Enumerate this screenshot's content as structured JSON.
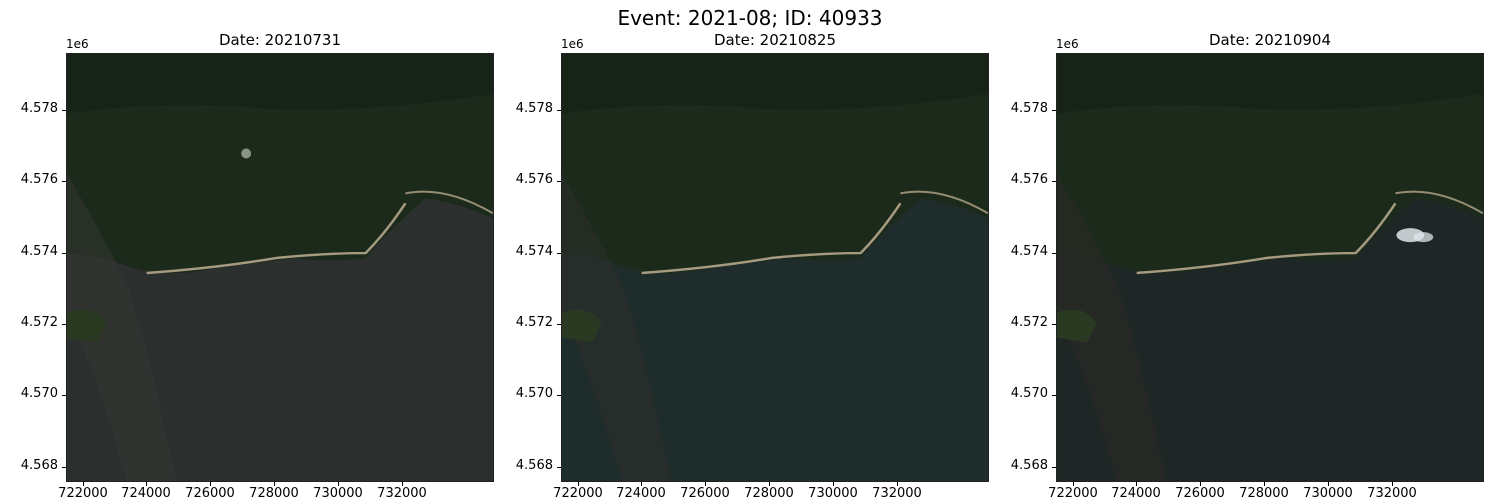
{
  "figure": {
    "suptitle": "Event: 2021-08; ID: 40933"
  },
  "axes_common": {
    "y_offset_label": "1e6",
    "y_ticks": [
      "4.578",
      "4.576",
      "4.574",
      "4.572",
      "4.570",
      "4.568"
    ],
    "x_ticks": [
      "722000",
      "724000",
      "726000",
      "728000",
      "730000",
      "732000"
    ]
  },
  "panels": [
    {
      "title": "Date: 20210731",
      "cloud": false,
      "tone": "#2b302e"
    },
    {
      "title": "Date: 20210825",
      "cloud": false,
      "tone": "#1f2c2c"
    },
    {
      "title": "Date: 20210904",
      "cloud": true,
      "tone": "#1e2626"
    }
  ]
}
